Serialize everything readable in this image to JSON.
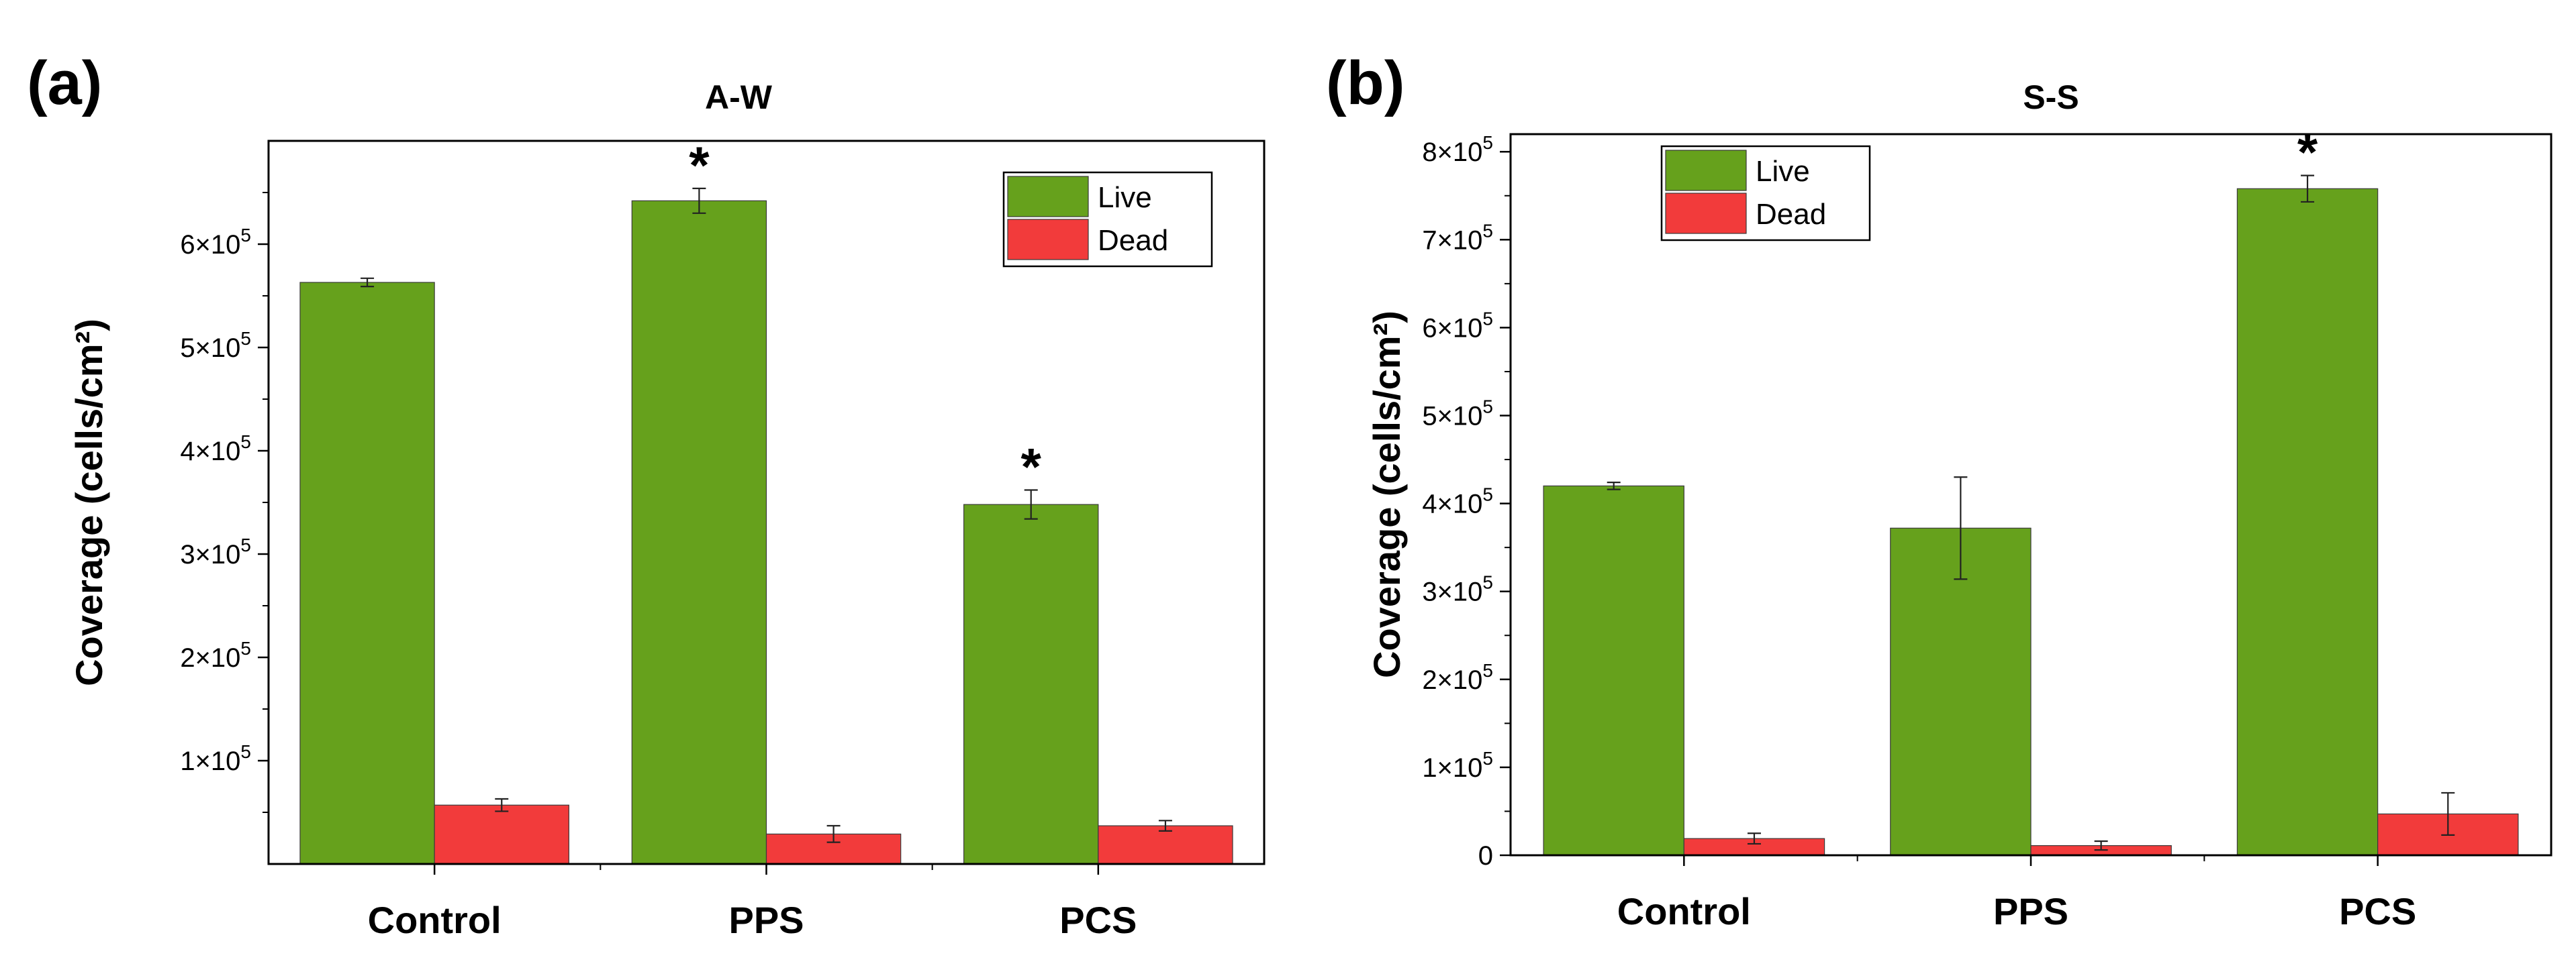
{
  "chart_data": [
    {
      "type": "bar",
      "panel_label": "(a)",
      "title": "A-W",
      "xlabel": "",
      "ylabel": "Coverage (cells/cm²)",
      "categories": [
        "Control",
        "PPS",
        "PCS"
      ],
      "series": [
        {
          "name": "Live",
          "color": "#66a11c",
          "values": [
            563000,
            642000,
            348000
          ],
          "errors": [
            4000,
            12000,
            14000
          ]
        },
        {
          "name": "Dead",
          "color": "#f23b3b",
          "values": [
            57000,
            29000,
            37000
          ],
          "errors": [
            6000,
            8000,
            5000
          ]
        }
      ],
      "significance": [
        {
          "series": "Live",
          "category": "PPS",
          "label": "*"
        },
        {
          "series": "Live",
          "category": "PCS",
          "label": "*"
        }
      ],
      "ylim": [
        0,
        700000
      ],
      "yticks": [
        {
          "value": 100000,
          "mantissa": "1×10",
          "exp": "5"
        },
        {
          "value": 200000,
          "mantissa": "2×10",
          "exp": "5"
        },
        {
          "value": 300000,
          "mantissa": "3×10",
          "exp": "5"
        },
        {
          "value": 400000,
          "mantissa": "4×10",
          "exp": "5"
        },
        {
          "value": 500000,
          "mantissa": "5×10",
          "exp": "5"
        },
        {
          "value": 600000,
          "mantissa": "6×10",
          "exp": "5"
        }
      ],
      "legend": "top-right",
      "grid": false
    },
    {
      "type": "bar",
      "panel_label": "(b)",
      "title": "S-S",
      "xlabel": "",
      "ylabel": "Coverage (cells/cm²)",
      "categories": [
        "Control",
        "PPS",
        "PCS"
      ],
      "series": [
        {
          "name": "Live",
          "color": "#66a11c",
          "values": [
            420000,
            372000,
            758000
          ],
          "errors": [
            4000,
            58000,
            15000
          ]
        },
        {
          "name": "Dead",
          "color": "#f23b3b",
          "values": [
            19000,
            11000,
            47000
          ],
          "errors": [
            6000,
            5000,
            24000
          ]
        }
      ],
      "significance": [
        {
          "series": "Live",
          "category": "PCS",
          "label": "*"
        }
      ],
      "ylim": [
        0,
        820000
      ],
      "yticks": [
        {
          "value": 0,
          "mantissa": "0",
          "exp": ""
        },
        {
          "value": 100000,
          "mantissa": "1×10",
          "exp": "5"
        },
        {
          "value": 200000,
          "mantissa": "2×10",
          "exp": "5"
        },
        {
          "value": 300000,
          "mantissa": "3×10",
          "exp": "5"
        },
        {
          "value": 400000,
          "mantissa": "4×10",
          "exp": "5"
        },
        {
          "value": 500000,
          "mantissa": "5×10",
          "exp": "5"
        },
        {
          "value": 600000,
          "mantissa": "6×10",
          "exp": "5"
        },
        {
          "value": 700000,
          "mantissa": "7×10",
          "exp": "5"
        },
        {
          "value": 800000,
          "mantissa": "8×10",
          "exp": "5"
        }
      ],
      "legend": "top-left",
      "grid": false
    }
  ]
}
